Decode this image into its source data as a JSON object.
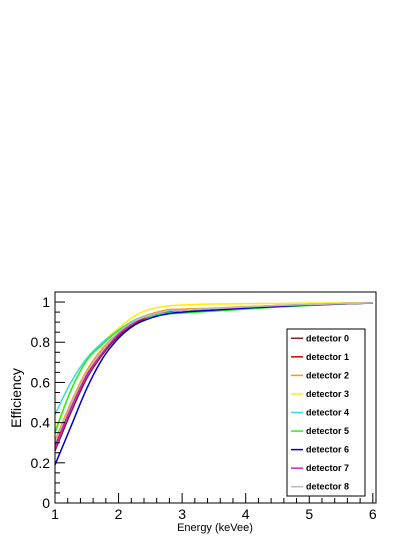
{
  "chart_data": {
    "type": "line",
    "title": "",
    "xlabel": "Energy (keVee)",
    "ylabel": "Efficiency",
    "xlim": [
      1,
      6.05
    ],
    "ylim": [
      0,
      1.05
    ],
    "x_ticks": [
      1,
      2,
      3,
      4,
      5,
      6
    ],
    "y_ticks": [
      0,
      0.2,
      0.4,
      0.6,
      0.8,
      1
    ],
    "x_tick_labels": [
      "1",
      "2",
      "3",
      "4",
      "5",
      "6"
    ],
    "y_tick_labels": [
      "0",
      "0.2",
      "0.4",
      "0.6",
      "0.8",
      "1"
    ],
    "grid": false,
    "legend_position": "lower-right",
    "x": [
      1.0,
      1.25,
      1.5,
      1.75,
      2.0,
      2.25,
      2.5,
      2.75,
      3.0,
      3.5,
      4.0,
      4.5,
      5.0,
      5.5,
      6.0
    ],
    "series": [
      {
        "name": "detector 0",
        "color": "#8b1a1a",
        "values": [
          0.26,
          0.45,
          0.62,
          0.74,
          0.83,
          0.89,
          0.93,
          0.95,
          0.96,
          0.965,
          0.975,
          0.98,
          0.985,
          0.99,
          0.995
        ]
      },
      {
        "name": "detector 1",
        "color": "#cc0000",
        "values": [
          0.29,
          0.48,
          0.64,
          0.76,
          0.84,
          0.9,
          0.93,
          0.955,
          0.96,
          0.967,
          0.975,
          0.982,
          0.987,
          0.992,
          0.996
        ]
      },
      {
        "name": "detector 2",
        "color": "#ff9900",
        "values": [
          0.31,
          0.5,
          0.66,
          0.77,
          0.85,
          0.91,
          0.94,
          0.96,
          0.965,
          0.97,
          0.977,
          0.983,
          0.988,
          0.992,
          0.996
        ]
      },
      {
        "name": "detector 3",
        "color": "#ffee00",
        "values": [
          0.36,
          0.56,
          0.71,
          0.8,
          0.87,
          0.93,
          0.965,
          0.98,
          0.985,
          0.99,
          0.992,
          0.993,
          0.995,
          0.996,
          0.998
        ]
      },
      {
        "name": "detector 4",
        "color": "#33dddd",
        "values": [
          0.44,
          0.6,
          0.72,
          0.8,
          0.86,
          0.91,
          0.935,
          0.945,
          0.95,
          0.96,
          0.97,
          0.978,
          0.985,
          0.99,
          0.995
        ]
      },
      {
        "name": "detector 5",
        "color": "#22ee22",
        "values": [
          0.35,
          0.56,
          0.71,
          0.79,
          0.86,
          0.905,
          0.93,
          0.94,
          0.945,
          0.955,
          0.965,
          0.975,
          0.983,
          0.99,
          0.995
        ]
      },
      {
        "name": "detector 6",
        "color": "#0000cc",
        "values": [
          0.19,
          0.38,
          0.57,
          0.72,
          0.82,
          0.885,
          0.92,
          0.94,
          0.95,
          0.96,
          0.97,
          0.978,
          0.985,
          0.99,
          0.995
        ]
      },
      {
        "name": "detector 7",
        "color": "#cc22cc",
        "values": [
          0.27,
          0.47,
          0.63,
          0.75,
          0.84,
          0.9,
          0.935,
          0.955,
          0.96,
          0.967,
          0.975,
          0.982,
          0.987,
          0.992,
          0.996
        ]
      },
      {
        "name": "detector 8",
        "color": "#bbbbbb",
        "values": [
          0.3,
          0.49,
          0.65,
          0.76,
          0.85,
          0.905,
          0.935,
          0.955,
          0.96,
          0.968,
          0.976,
          0.983,
          0.988,
          0.992,
          0.996
        ]
      }
    ]
  }
}
